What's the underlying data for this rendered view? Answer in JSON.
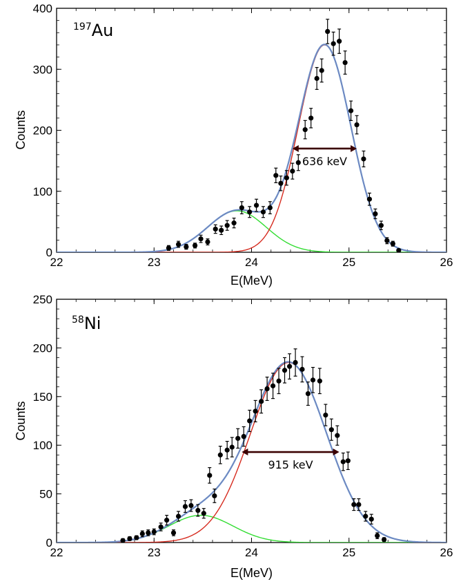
{
  "chart_data": [
    {
      "type": "scatter",
      "label": "197Au",
      "label_mass": "197",
      "label_element": "Au",
      "xlabel": "E(MeV)",
      "ylabel": "Counts",
      "xlim": [
        22,
        26
      ],
      "ylim": [
        0,
        400
      ],
      "xticks": [
        22,
        23,
        24,
        25,
        26
      ],
      "yticks": [
        0,
        100,
        200,
        300,
        400
      ],
      "annotation": {
        "text": "636 keV",
        "x_from": 24.42,
        "x_to": 25.08,
        "y": 170
      },
      "colors": {
        "data": "#000000",
        "total": "#5b8fc9",
        "peak": "#d62a1e",
        "tail": "#33dd33",
        "total_overlay": "#8a7fb8"
      },
      "series": [
        {
          "kind": "data",
          "x": [
            23.15,
            23.25,
            23.33,
            23.42,
            23.48,
            23.55,
            23.63,
            23.69,
            23.75,
            23.82,
            23.9,
            23.98,
            24.05,
            24.12,
            24.19,
            24.25,
            24.3,
            24.36,
            24.42,
            24.48,
            24.55,
            24.61,
            24.67,
            24.72,
            24.78,
            24.84,
            24.9,
            24.96,
            25.02,
            25.08,
            25.15,
            25.21,
            25.27,
            25.33,
            25.39,
            25.45,
            25.51
          ],
          "y": [
            7,
            13,
            9,
            11,
            22,
            17,
            38,
            36,
            44,
            48,
            73,
            66,
            77,
            66,
            73,
            126,
            113,
            122,
            133,
            147,
            201,
            220,
            285,
            298,
            362,
            342,
            346,
            311,
            232,
            209,
            153,
            87,
            63,
            44,
            19,
            14,
            3
          ],
          "err": [
            4,
            5,
            4,
            4,
            6,
            5,
            7,
            7,
            8,
            8,
            10,
            9,
            10,
            9,
            10,
            12,
            12,
            12,
            13,
            13,
            15,
            16,
            18,
            19,
            20,
            19,
            20,
            19,
            16,
            15,
            13,
            10,
            8,
            7,
            5,
            4,
            2
          ]
        },
        {
          "kind": "gauss",
          "role": "peak",
          "A": 340,
          "mu": 24.75,
          "sigma": 0.27
        },
        {
          "kind": "gauss",
          "role": "tail",
          "A": 68,
          "mu": 23.85,
          "sigma": 0.3
        }
      ]
    },
    {
      "type": "scatter",
      "label": "58Ni",
      "label_mass": "58",
      "label_element": "Ni",
      "xlabel": "E(MeV)",
      "ylabel": "Counts",
      "xlim": [
        22,
        26
      ],
      "ylim": [
        0,
        250
      ],
      "xticks": [
        22,
        23,
        24,
        25,
        26
      ],
      "yticks": [
        0,
        50,
        100,
        150,
        200,
        250
      ],
      "annotation": {
        "text": "915 keV",
        "x_from": 23.9,
        "x_to": 24.9,
        "y": 93
      },
      "colors": {
        "data": "#000000",
        "total": "#5b8fc9",
        "peak": "#d62a1e",
        "tail": "#33dd33",
        "total_overlay": "#8a7fb8"
      },
      "series": [
        {
          "kind": "data",
          "x": [
            22.68,
            22.75,
            22.82,
            22.88,
            22.94,
            23.0,
            23.07,
            23.13,
            23.2,
            23.25,
            23.32,
            23.38,
            23.45,
            23.51,
            23.57,
            23.62,
            23.68,
            23.75,
            23.8,
            23.86,
            23.92,
            23.98,
            24.04,
            24.1,
            24.16,
            24.22,
            24.28,
            24.34,
            24.39,
            24.45,
            24.52,
            24.58,
            24.63,
            24.7,
            24.76,
            24.82,
            24.88,
            24.94,
            24.99,
            25.05,
            25.1,
            25.17,
            25.23,
            25.29,
            25.36
          ],
          "y": [
            2,
            4,
            5,
            9,
            10,
            11,
            16,
            23,
            10,
            27,
            37,
            38,
            33,
            30,
            69,
            48,
            90,
            95,
            98,
            107,
            109,
            125,
            135,
            145,
            158,
            161,
            166,
            177,
            181,
            185,
            178,
            153,
            167,
            166,
            131,
            116,
            110,
            83,
            84,
            39,
            39,
            27,
            24,
            7,
            3
          ],
          "err": [
            2,
            2,
            2,
            3,
            3,
            3,
            4,
            5,
            3,
            5,
            6,
            6,
            6,
            5,
            8,
            7,
            9,
            9,
            10,
            10,
            10,
            11,
            11,
            12,
            12,
            13,
            13,
            13,
            13,
            14,
            13,
            12,
            13,
            13,
            11,
            11,
            10,
            9,
            9,
            6,
            6,
            5,
            5,
            3,
            2
          ]
        },
        {
          "kind": "gauss",
          "role": "peak",
          "A": 185,
          "mu": 24.38,
          "sigma": 0.39
        },
        {
          "kind": "gauss",
          "role": "tail",
          "A": 28,
          "mu": 23.48,
          "sigma": 0.33
        }
      ]
    }
  ]
}
